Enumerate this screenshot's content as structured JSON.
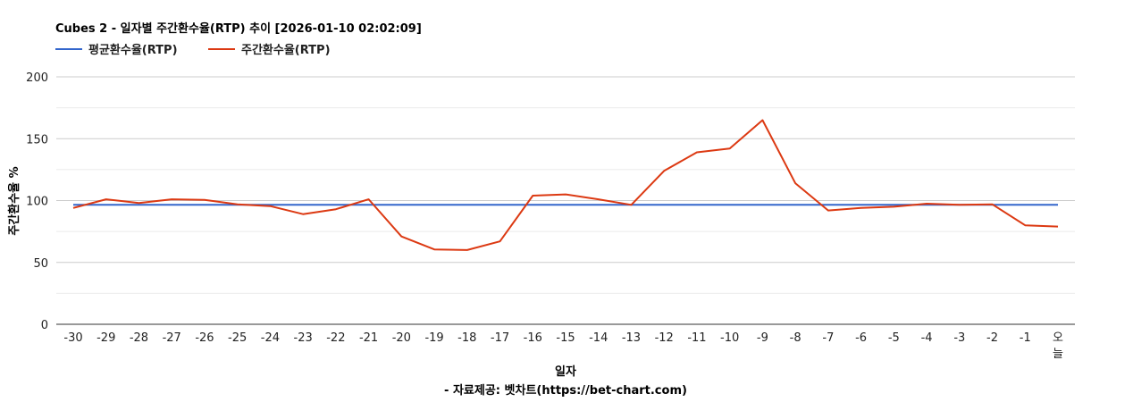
{
  "chart_data": {
    "type": "line",
    "title": "Cubes 2 - 일자별 주간환수율(RTP) 추이 [2026-01-10 02:02:09]",
    "xlabel": "일자",
    "ylabel": "주간환수율 %",
    "source": "- 자료제공: 벳차트(https://bet-chart.com)",
    "ylim": [
      0,
      200
    ],
    "y_ticks": [
      "0",
      "50",
      "100",
      "150",
      "200"
    ],
    "grid": true,
    "legend_position": "top-left",
    "categories": [
      "-30",
      "-29",
      "-28",
      "-27",
      "-26",
      "-25",
      "-24",
      "-23",
      "-22",
      "-21",
      "-20",
      "-19",
      "-18",
      "-17",
      "-16",
      "-15",
      "-14",
      "-13",
      "-12",
      "-11",
      "-10",
      "-9",
      "-8",
      "-7",
      "-6",
      "-5",
      "-4",
      "-3",
      "-2",
      "-1",
      "오늘"
    ],
    "series": [
      {
        "name": "평균환수율(RTP)",
        "color": "#3366cc",
        "values": [
          96.5,
          96.5,
          96.5,
          96.5,
          96.5,
          96.5,
          96.5,
          96.5,
          96.5,
          96.5,
          96.5,
          96.5,
          96.5,
          96.5,
          96.5,
          96.5,
          96.5,
          96.5,
          96.5,
          96.5,
          96.5,
          96.5,
          96.5,
          96.5,
          96.5,
          96.5,
          96.5,
          96.5,
          96.5,
          96.5,
          96.5
        ]
      },
      {
        "name": "주간환수율(RTP)",
        "color": "#dc3912",
        "values": [
          94,
          101,
          98,
          101,
          100.5,
          97,
          95.5,
          89,
          93,
          101,
          71,
          60.5,
          60,
          67,
          104,
          105,
          101,
          96.5,
          124,
          139,
          142,
          165,
          114,
          92,
          94,
          95,
          97.5,
          96.5,
          97,
          80,
          79
        ]
      }
    ]
  }
}
